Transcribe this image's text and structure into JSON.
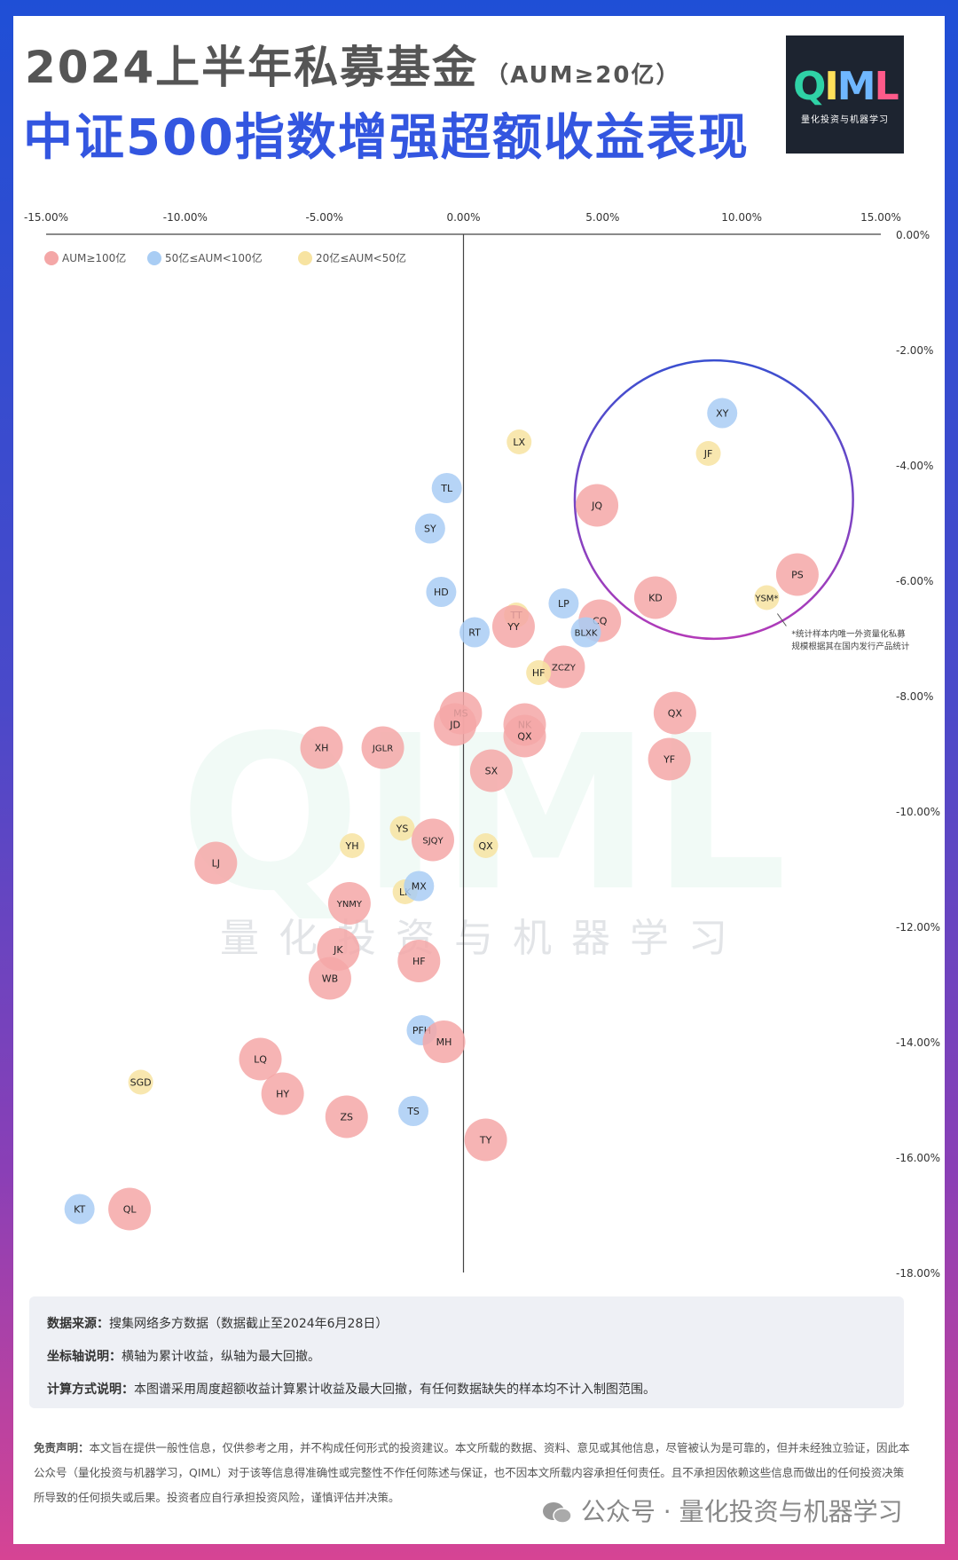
{
  "header": {
    "title_line1": "2024上半年私募基金",
    "title_line1_suffix": "（AUM≥20亿）",
    "title_line2": "中证500指数增强超额收益表现"
  },
  "logo": {
    "mark": "QIML",
    "subtitle": "量化投资与机器学习"
  },
  "watermark": {
    "mark": "QIML",
    "text": "量化投资与机器学习"
  },
  "chart_data": {
    "type": "scatter",
    "x_axis": {
      "range": [
        -15,
        15
      ],
      "ticks": [
        -15,
        -10,
        -5,
        0,
        5,
        10,
        15
      ],
      "tick_labels": [
        "-15.00%",
        "-10.00%",
        "-5.00%",
        "0.00%",
        "5.00%",
        "10.00%",
        "15.00%"
      ],
      "position": "top"
    },
    "y_axis": {
      "range": [
        -18,
        0
      ],
      "ticks": [
        0,
        -2,
        -4,
        -6,
        -8,
        -10,
        -12,
        -14,
        -16,
        -18
      ],
      "tick_labels": [
        "0.00%",
        "-2.00%",
        "-4.00%",
        "-6.00%",
        "-8.00%",
        "-10.00%",
        "-12.00%",
        "-14.00%",
        "-16.00%",
        "-18.00%"
      ],
      "position": "right"
    },
    "grid": false,
    "legend_position": "top-left",
    "categories": [
      {
        "key": "large",
        "label": "AUM≥100亿",
        "color": "#f4a7a7"
      },
      {
        "key": "mid",
        "label": "50亿≤AUM<100亿",
        "color": "#a9cdf4"
      },
      {
        "key": "small",
        "label": "20亿≤AUM<50亿",
        "color": "#f7e3a1"
      }
    ],
    "points": [
      {
        "label": "XY",
        "x": 9.3,
        "y": -3.1,
        "cat": "mid"
      },
      {
        "label": "LX",
        "x": 2.0,
        "y": -3.6,
        "cat": "small"
      },
      {
        "label": "JF",
        "x": 8.8,
        "y": -3.8,
        "cat": "small"
      },
      {
        "label": "TL",
        "x": -0.6,
        "y": -4.4,
        "cat": "mid"
      },
      {
        "label": "JQ",
        "x": 4.8,
        "y": -4.7,
        "cat": "large"
      },
      {
        "label": "SY",
        "x": -1.2,
        "y": -5.1,
        "cat": "mid"
      },
      {
        "label": "PS",
        "x": 12.0,
        "y": -5.9,
        "cat": "large"
      },
      {
        "label": "HD",
        "x": -0.8,
        "y": -6.2,
        "cat": "mid"
      },
      {
        "label": "KD",
        "x": 6.9,
        "y": -6.3,
        "cat": "large"
      },
      {
        "label": "YSM*",
        "x": 10.9,
        "y": -6.3,
        "cat": "small"
      },
      {
        "label": "LP",
        "x": 3.6,
        "y": -6.4,
        "cat": "mid"
      },
      {
        "label": "TT",
        "x": 1.9,
        "y": -6.6,
        "cat": "small"
      },
      {
        "label": "CQ",
        "x": 4.9,
        "y": -6.7,
        "cat": "large"
      },
      {
        "label": "YY",
        "x": 1.8,
        "y": -6.8,
        "cat": "large"
      },
      {
        "label": "RT",
        "x": 0.4,
        "y": -6.9,
        "cat": "mid"
      },
      {
        "label": "BLXK",
        "x": 4.4,
        "y": -6.9,
        "cat": "mid"
      },
      {
        "label": "ZCZY",
        "x": 3.6,
        "y": -7.5,
        "cat": "large"
      },
      {
        "label": "HF",
        "x": 2.7,
        "y": -7.6,
        "cat": "small"
      },
      {
        "label": "MS",
        "x": -0.1,
        "y": -8.3,
        "cat": "large"
      },
      {
        "label": "QX",
        "x": 7.6,
        "y": -8.3,
        "cat": "large"
      },
      {
        "label": "NK",
        "x": 2.2,
        "y": -8.5,
        "cat": "large"
      },
      {
        "label": "JD",
        "x": -0.3,
        "y": -8.5,
        "cat": "large"
      },
      {
        "label": "QX",
        "x": 2.2,
        "y": -8.7,
        "cat": "large"
      },
      {
        "label": "XH",
        "x": -5.1,
        "y": -8.9,
        "cat": "large"
      },
      {
        "label": "JGLR",
        "x": -2.9,
        "y": -8.9,
        "cat": "large"
      },
      {
        "label": "YF",
        "x": 7.4,
        "y": -9.1,
        "cat": "large"
      },
      {
        "label": "SX",
        "x": 1.0,
        "y": -9.3,
        "cat": "large"
      },
      {
        "label": "YS",
        "x": -2.2,
        "y": -10.3,
        "cat": "small"
      },
      {
        "label": "SJQY",
        "x": -1.1,
        "y": -10.5,
        "cat": "large"
      },
      {
        "label": "YH",
        "x": -4.0,
        "y": -10.6,
        "cat": "small"
      },
      {
        "label": "QX",
        "x": 0.8,
        "y": -10.6,
        "cat": "small"
      },
      {
        "label": "LJ",
        "x": -8.9,
        "y": -10.9,
        "cat": "large"
      },
      {
        "label": "LK",
        "x": -2.1,
        "y": -11.4,
        "cat": "small"
      },
      {
        "label": "MX",
        "x": -1.6,
        "y": -11.3,
        "cat": "mid"
      },
      {
        "label": "YNMY",
        "x": -4.1,
        "y": -11.6,
        "cat": "large"
      },
      {
        "label": "JK",
        "x": -4.5,
        "y": -12.4,
        "cat": "large"
      },
      {
        "label": "HF",
        "x": -1.6,
        "y": -12.6,
        "cat": "large"
      },
      {
        "label": "WB",
        "x": -4.8,
        "y": -12.9,
        "cat": "large"
      },
      {
        "label": "PFH",
        "x": -1.5,
        "y": -13.8,
        "cat": "mid"
      },
      {
        "label": "MH",
        "x": -0.7,
        "y": -14.0,
        "cat": "large"
      },
      {
        "label": "LQ",
        "x": -7.3,
        "y": -14.3,
        "cat": "large"
      },
      {
        "label": "SGD",
        "x": -11.6,
        "y": -14.7,
        "cat": "small"
      },
      {
        "label": "HY",
        "x": -6.5,
        "y": -14.9,
        "cat": "large"
      },
      {
        "label": "TS",
        "x": -1.8,
        "y": -15.2,
        "cat": "mid"
      },
      {
        "label": "ZS",
        "x": -4.2,
        "y": -15.3,
        "cat": "large"
      },
      {
        "label": "TY",
        "x": 0.8,
        "y": -15.7,
        "cat": "large"
      },
      {
        "label": "KT",
        "x": -13.8,
        "y": -16.9,
        "cat": "mid"
      },
      {
        "label": "QL",
        "x": -12.0,
        "y": -16.9,
        "cat": "large"
      }
    ],
    "highlight_circle": {
      "cx": 9.0,
      "cy": -4.6,
      "r_x": 5.0
    },
    "annotation": {
      "lines": [
        "*统计样本内唯一外资量化私募",
        "规模根据其在国内发行产品统计"
      ],
      "target": "YSM*"
    }
  },
  "notes": [
    {
      "label": "数据来源：",
      "text": "搜集网络多方数据（数据截止至2024年6月28日）"
    },
    {
      "label": "坐标轴说明：",
      "text": "横轴为累计收益，纵轴为最大回撤。"
    },
    {
      "label": "计算方式说明：",
      "text": "本图谱采用周度超额收益计算累计收益及最大回撤，有任何数据缺失的样本均不计入制图范围。"
    }
  ],
  "disclaimer": {
    "label": "免责声明：",
    "text": "本文旨在提供一般性信息，仅供参考之用，并不构成任何形式的投资建议。本文所载的数据、资料、意见或其他信息，尽管被认为是可靠的，但并未经独立验证，因此本公众号（量化投资与机器学习，QIML）对于该等信息得准确性或完整性不作任何陈述与保证，也不因本文所载内容承担任何责任。且不承担因依赖这些信息而做出的任何投资决策所导致的任何损失或后果。投资者应自行承担投资风险，谨慎评估并决策。"
  },
  "footer": {
    "wechat": "公众号 · 量化投资与机器学习"
  },
  "colors": {
    "title_gray": "#555555",
    "title_blue": "#3356e0",
    "logo_bg": "#1d2430"
  }
}
